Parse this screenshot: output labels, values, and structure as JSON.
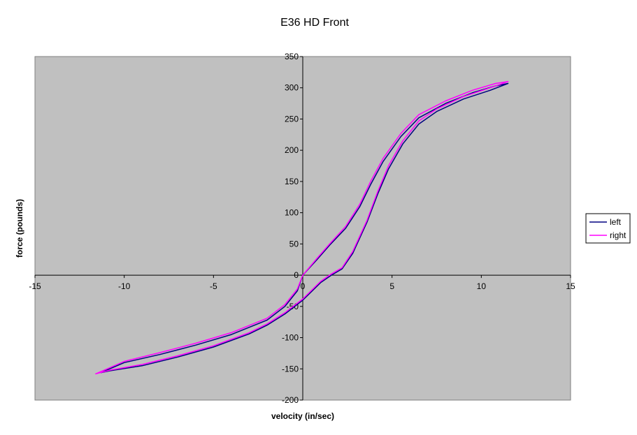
{
  "chart_data": {
    "type": "scatter",
    "title": "E36 HD Front",
    "xlabel": "velocity (in/sec)",
    "ylabel": "force (pounds)",
    "xlim": [
      -15,
      15
    ],
    "ylim": [
      -200,
      350
    ],
    "x_ticks": [
      -15,
      -10,
      -5,
      0,
      5,
      10,
      15
    ],
    "y_ticks": [
      -200,
      -150,
      -100,
      -50,
      0,
      50,
      100,
      150,
      200,
      250,
      300,
      350
    ],
    "grid": false,
    "plot_background": "#c0c0c0",
    "legend_position": "right",
    "series": [
      {
        "name": "left",
        "color": "#000080",
        "points": [
          [
            0,
            0
          ],
          [
            0.8,
            25
          ],
          [
            1.5,
            48
          ],
          [
            2.4,
            75
          ],
          [
            3.2,
            110
          ],
          [
            3.8,
            145
          ],
          [
            4.5,
            182
          ],
          [
            5.5,
            222
          ],
          [
            6.5,
            252
          ],
          [
            8,
            275
          ],
          [
            9.5,
            292
          ],
          [
            10.8,
            303
          ],
          [
            11.5,
            307
          ],
          [
            10.5,
            296
          ],
          [
            9,
            282
          ],
          [
            7.5,
            262
          ],
          [
            6.5,
            242
          ],
          [
            5.6,
            210
          ],
          [
            4.8,
            170
          ],
          [
            4.2,
            130
          ],
          [
            3.6,
            85
          ],
          [
            2.8,
            35
          ],
          [
            2.2,
            10
          ],
          [
            1.6,
            0
          ],
          [
            1,
            -12
          ],
          [
            0,
            -40
          ],
          [
            -1,
            -62
          ],
          [
            -2,
            -80
          ],
          [
            -3,
            -94
          ],
          [
            -5,
            -115
          ],
          [
            -7,
            -131
          ],
          [
            -9,
            -145
          ],
          [
            -10.8,
            -153
          ],
          [
            -11.3,
            -156
          ],
          [
            -10,
            -140
          ],
          [
            -8,
            -127
          ],
          [
            -6,
            -112
          ],
          [
            -4,
            -95
          ],
          [
            -2,
            -72
          ],
          [
            -1,
            -50
          ],
          [
            -0.3,
            -25
          ],
          [
            0,
            0
          ]
        ]
      },
      {
        "name": "right",
        "color": "#ff00ff",
        "points": [
          [
            0,
            0
          ],
          [
            0.8,
            27
          ],
          [
            1.5,
            50
          ],
          [
            2.4,
            78
          ],
          [
            3.2,
            114
          ],
          [
            3.8,
            150
          ],
          [
            4.5,
            187
          ],
          [
            5.5,
            227
          ],
          [
            6.5,
            257
          ],
          [
            8,
            279
          ],
          [
            9.5,
            296
          ],
          [
            10.8,
            307
          ],
          [
            11.5,
            310
          ],
          [
            10.5,
            300
          ],
          [
            9,
            286
          ],
          [
            7.5,
            266
          ],
          [
            6.5,
            247
          ],
          [
            5.6,
            215
          ],
          [
            4.8,
            175
          ],
          [
            4.2,
            134
          ],
          [
            3.6,
            88
          ],
          [
            2.8,
            38
          ],
          [
            2.2,
            12
          ],
          [
            1.6,
            2
          ],
          [
            1,
            -10
          ],
          [
            0,
            -38
          ],
          [
            -1,
            -60
          ],
          [
            -2,
            -78
          ],
          [
            -3,
            -92
          ],
          [
            -5,
            -113
          ],
          [
            -7,
            -129
          ],
          [
            -9,
            -143
          ],
          [
            -10.8,
            -152
          ],
          [
            -11.6,
            -158
          ],
          [
            -10,
            -138
          ],
          [
            -8,
            -124
          ],
          [
            -6,
            -109
          ],
          [
            -4,
            -92
          ],
          [
            -2,
            -69
          ],
          [
            -1,
            -47
          ],
          [
            -0.3,
            -22
          ],
          [
            0,
            0
          ]
        ]
      }
    ]
  }
}
